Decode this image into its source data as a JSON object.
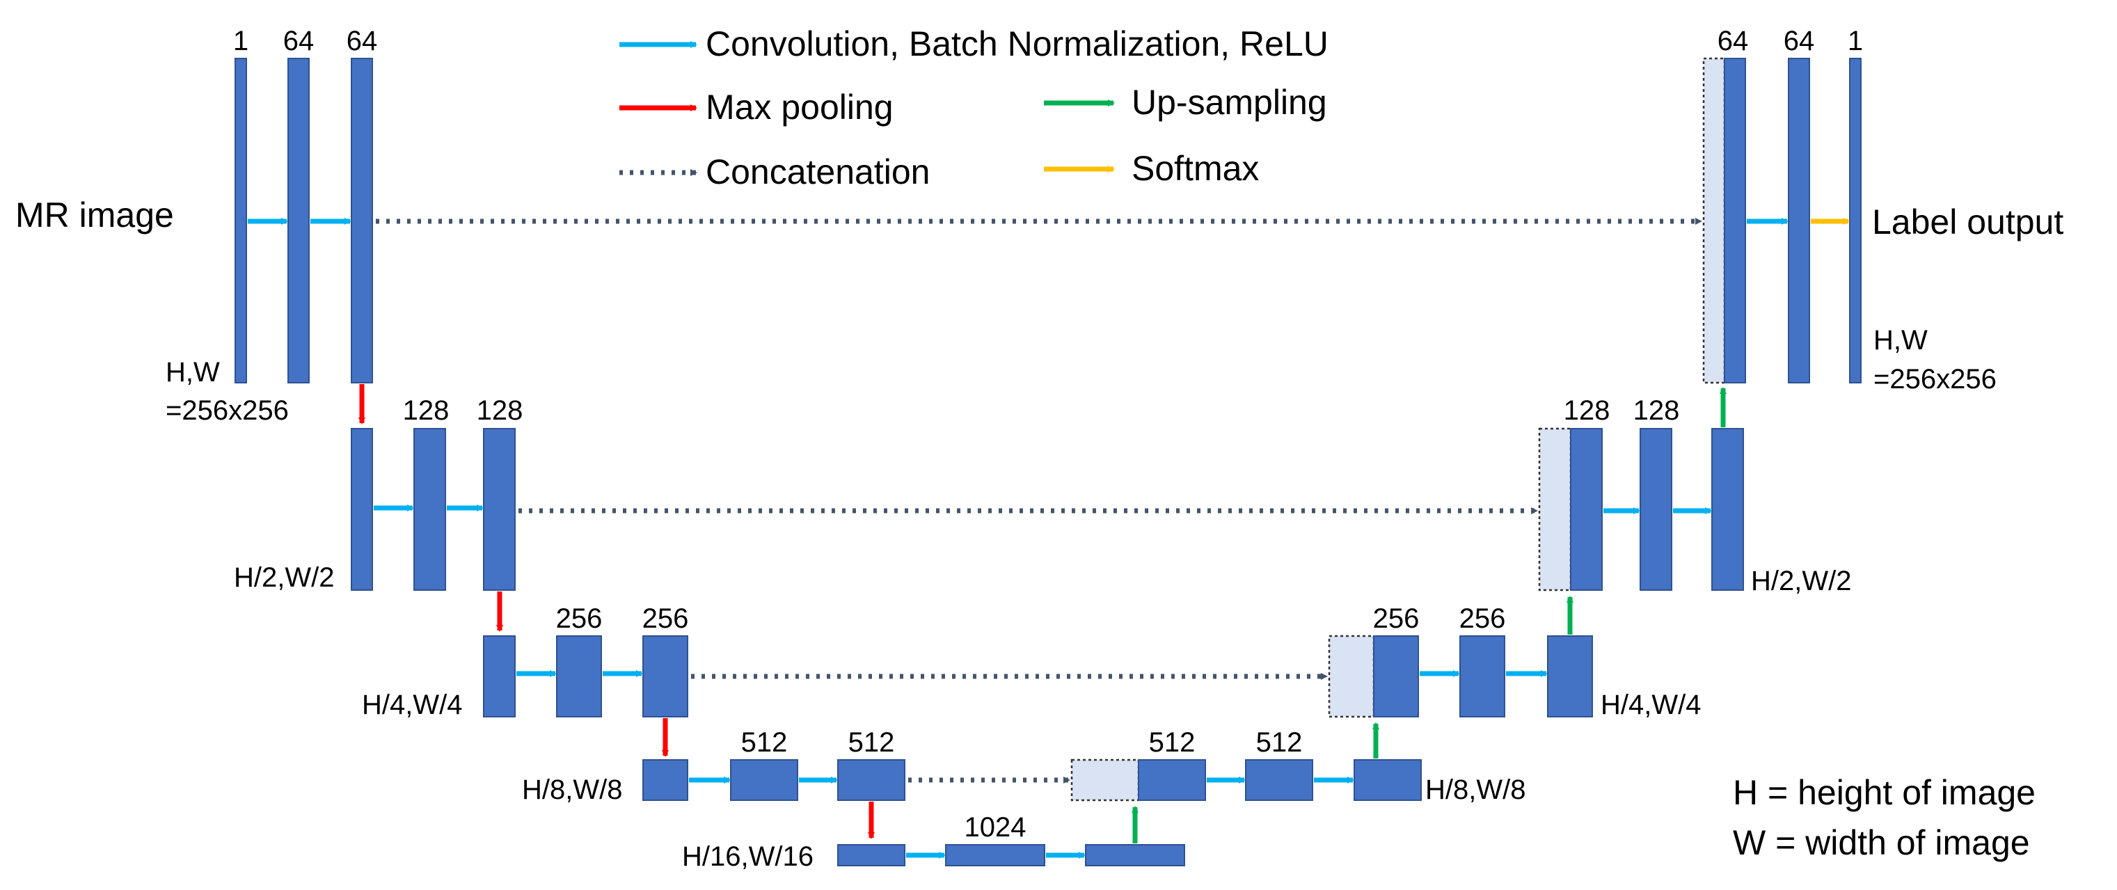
{
  "legend": {
    "conv": {
      "label": "Convolution, Batch Normalization, ReLU",
      "color": "#00b0f0"
    },
    "pool": {
      "label": "Max pooling",
      "color": "#ff0000"
    },
    "up": {
      "label": "Up-sampling",
      "color": "#00b050"
    },
    "concat": {
      "label": "Concatenation",
      "color": "#44546a"
    },
    "softmax": {
      "label": "Softmax",
      "color": "#ffc000"
    }
  },
  "io": {
    "input": "MR image",
    "output": "Label output"
  },
  "channels": {
    "enc1": [
      "1",
      "64",
      "64"
    ],
    "enc2": [
      "128",
      "128"
    ],
    "enc3": [
      "256",
      "256"
    ],
    "enc4": [
      "512",
      "512"
    ],
    "bottleneck": "1024",
    "dec4": [
      "512",
      "512"
    ],
    "dec3": [
      "256",
      "256"
    ],
    "dec2": [
      "128",
      "128"
    ],
    "dec1": [
      "64",
      "64",
      "1"
    ]
  },
  "dims": {
    "l1_line1": "H,W",
    "l1_line2": "=256x256",
    "out_line1": "H,W",
    "out_line2": "=256x256",
    "l2_left": "H/2,W/2",
    "l2_right": "H/2,W/2",
    "l3_left": "H/4,W/4",
    "l3_right": "H/4,W/4",
    "l4_left": "H/8,W/8",
    "l4_right": "H/8,W/8",
    "l5_left": "H/16,W/16"
  },
  "notes": {
    "h_def": "H = height of image",
    "w_def": "W = width of image"
  },
  "colors": {
    "block_fill": "#4472c4",
    "skip_fill": "#dae3f3"
  }
}
